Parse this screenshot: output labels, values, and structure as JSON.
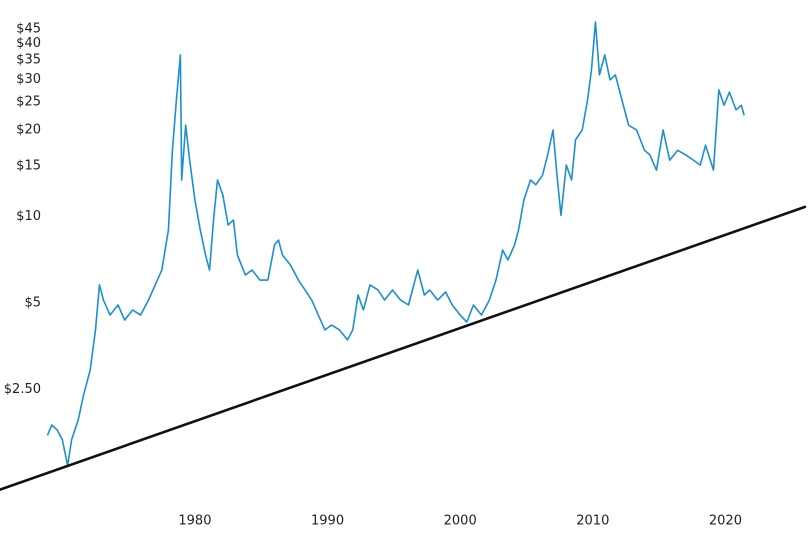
{
  "chart_data": {
    "type": "line",
    "yscale": "log",
    "grid": false,
    "xlim": [
      1965.3,
      2026
    ],
    "xticks": [
      1980,
      1990,
      2000,
      2010,
      2020
    ],
    "ylim": [
      1.1,
      50
    ],
    "yticks": [
      {
        "value": 2.5,
        "label": "$2.50"
      },
      {
        "value": 5,
        "label": "$5"
      },
      {
        "value": 10,
        "label": "$10"
      },
      {
        "value": 15,
        "label": "$15"
      },
      {
        "value": 20,
        "label": "$20"
      },
      {
        "value": 25,
        "label": "$25"
      },
      {
        "value": 30,
        "label": "$30"
      },
      {
        "value": 35,
        "label": "$35"
      },
      {
        "value": 40,
        "label": "$40"
      },
      {
        "value": 45,
        "label": "$45"
      }
    ],
    "series": [
      {
        "color": "#1b8fd0",
        "width": 1.6,
        "x": [
          1968.9,
          1969.2,
          1969.6,
          1970.0,
          1970.4,
          1970.7,
          1971.2,
          1971.6,
          1972.1,
          1972.5,
          1972.8,
          1973.1,
          1973.6,
          1974.2,
          1974.7,
          1975.3,
          1975.9,
          1976.5,
          1977.0,
          1977.5,
          1978.0,
          1978.3,
          1978.6,
          1978.9,
          1979.0,
          1979.3,
          1979.6,
          1980.0,
          1980.4,
          1980.8,
          1981.1,
          1981.4,
          1981.7,
          1982.1,
          1982.5,
          1982.9,
          1983.2,
          1983.8,
          1984.3,
          1984.9,
          1985.5,
          1986.0,
          1986.3,
          1986.6,
          1987.2,
          1987.8,
          1988.3,
          1988.8,
          1989.3,
          1989.8,
          1990.3,
          1990.9,
          1991.5,
          1991.9,
          1992.3,
          1992.7,
          1993.2,
          1993.8,
          1994.3,
          1994.9,
          1995.5,
          1996.1,
          1996.5,
          1996.8,
          1997.3,
          1997.7,
          1998.3,
          1998.9,
          1999.4,
          2000.0,
          2000.5,
          2001.0,
          2001.6,
          2002.2,
          2002.7,
          2003.2,
          2003.6,
          2004.1,
          2004.4,
          2004.8,
          2005.3,
          2005.7,
          2006.2,
          2006.6,
          2007.0,
          2007.3,
          2007.6,
          2008.0,
          2008.4,
          2008.7,
          2009.2,
          2009.6,
          2009.9,
          2010.2,
          2010.5,
          2010.9,
          2011.3,
          2011.7,
          2012.2,
          2012.7,
          2013.3,
          2013.9,
          2014.3,
          2014.8,
          2015.3,
          2015.8,
          2016.4,
          2017.0,
          2017.6,
          2018.1,
          2018.5,
          2019.1,
          2019.5,
          2019.9,
          2020.3,
          2020.8,
          2021.2,
          2021.4
        ],
        "values": [
          1.74,
          1.88,
          1.81,
          1.67,
          1.36,
          1.67,
          1.96,
          2.39,
          2.92,
          4.03,
          5.78,
          5.12,
          4.54,
          4.92,
          4.36,
          4.73,
          4.54,
          5.12,
          5.78,
          6.51,
          8.98,
          17.0,
          25.4,
          36.5,
          13.4,
          20.8,
          15.7,
          11.4,
          8.98,
          7.34,
          6.51,
          9.72,
          13.4,
          11.9,
          9.34,
          9.72,
          7.34,
          6.26,
          6.51,
          6.01,
          6.01,
          7.96,
          8.28,
          7.34,
          6.78,
          6.01,
          5.55,
          5.12,
          4.54,
          4.03,
          4.19,
          4.03,
          3.72,
          4.03,
          5.33,
          4.73,
          5.78,
          5.55,
          5.12,
          5.55,
          5.12,
          4.92,
          5.78,
          6.51,
          5.33,
          5.55,
          5.12,
          5.46,
          4.92,
          4.54,
          4.29,
          4.92,
          4.54,
          5.12,
          6.01,
          7.64,
          7.06,
          7.96,
          8.98,
          11.4,
          13.4,
          12.9,
          13.9,
          16.4,
          20.0,
          13.9,
          10.1,
          15.1,
          13.4,
          18.5,
          20.0,
          25.4,
          32.4,
          47.5,
          31.1,
          36.5,
          29.9,
          31.1,
          25.4,
          20.8,
          20.0,
          17.0,
          16.4,
          14.5,
          20.0,
          15.7,
          17.0,
          16.4,
          15.7,
          15.1,
          17.7,
          14.5,
          27.6,
          24.4,
          27.1,
          23.5,
          24.4,
          22.6
        ]
      },
      {
        "color": "#111111",
        "width": 2.6,
        "x": [
          1965.3,
          2026
        ],
        "values": [
          1.12,
          10.8
        ]
      }
    ]
  }
}
